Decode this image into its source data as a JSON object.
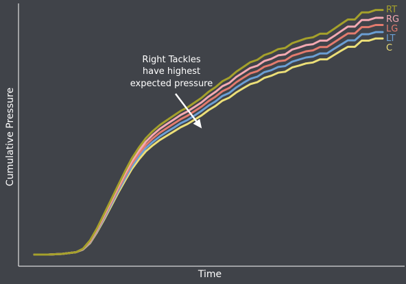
{
  "chart_data": {
    "type": "line",
    "title": "",
    "xlabel": "Time",
    "ylabel": "Cumulative Pressure",
    "xlim": [
      0,
      100
    ],
    "ylim": [
      0,
      100
    ],
    "grid": false,
    "legend_placement": "right, at line ends",
    "annotation": {
      "lines": [
        "Right Tackles",
        "have highest",
        "expected pressure"
      ],
      "arrow_target": {
        "x": 52,
        "y": 55
      }
    },
    "x": [
      0,
      4,
      8,
      12,
      14,
      16,
      18,
      20,
      22,
      24,
      26,
      28,
      30,
      32,
      34,
      36,
      38,
      40,
      42,
      44,
      46,
      48,
      50,
      52,
      54,
      56,
      58,
      60,
      62,
      64,
      66,
      68,
      70,
      72,
      74,
      76,
      78,
      80,
      82,
      84,
      86,
      88,
      90,
      92,
      94,
      96,
      98,
      100
    ],
    "series": [
      {
        "name": "RT",
        "color": "#a5a12b",
        "values": [
          0,
          0,
          0.3,
          1,
          2.5,
          6,
          11,
          17,
          23,
          29,
          35,
          40.5,
          45,
          49,
          52,
          54.5,
          56.5,
          58.5,
          60.5,
          62,
          64,
          66,
          68.5,
          70.5,
          73,
          74.5,
          77,
          79,
          81,
          82,
          84,
          85,
          86.5,
          87,
          89,
          90,
          91,
          91.5,
          93,
          93,
          95,
          97,
          99,
          99,
          102,
          102,
          103,
          103
        ]
      },
      {
        "name": "RG",
        "color": "#f4a9b2",
        "values": [
          0,
          0,
          0.3,
          1,
          2.4,
          5.7,
          10.6,
          16.4,
          22.3,
          28.2,
          34,
          39.3,
          43.7,
          47.5,
          50.4,
          52.9,
          54.9,
          56.8,
          58.8,
          60.3,
          62.2,
          64.1,
          66.5,
          68.5,
          70.9,
          72.3,
          74.8,
          76.7,
          78.6,
          79.5,
          81.5,
          82.4,
          83.9,
          84.3,
          86.3,
          87.2,
          88.2,
          88.6,
          90.1,
          90.1,
          92,
          94,
          96,
          96,
          98.8,
          98.8,
          99.7,
          99.7
        ]
      },
      {
        "name": "LG",
        "color": "#e37b6e",
        "values": [
          0,
          0,
          0.3,
          1,
          2.3,
          5.4,
          10.2,
          15.8,
          21.6,
          27.4,
          33,
          38.2,
          42.5,
          46.1,
          48.9,
          51.3,
          53.2,
          55.1,
          57,
          58.5,
          60.4,
          62.3,
          64.6,
          66.5,
          68.8,
          70.2,
          72.6,
          74.5,
          76.3,
          77.2,
          79.1,
          80,
          81.4,
          81.8,
          83.7,
          84.6,
          85.6,
          86,
          87.4,
          87.4,
          89.3,
          91.2,
          93.1,
          93.1,
          95.8,
          95.8,
          96.7,
          96.7
        ]
      },
      {
        "name": "LT",
        "color": "#6b9fd4",
        "values": [
          0,
          0,
          0.3,
          1,
          2.2,
          5.1,
          9.8,
          15.2,
          20.9,
          26.6,
          32,
          37.1,
          41.3,
          44.8,
          47.4,
          49.7,
          51.6,
          53.4,
          55.3,
          56.7,
          58.6,
          60.5,
          62.7,
          64.5,
          66.8,
          68.1,
          70.4,
          72.3,
          74,
          74.9,
          76.8,
          77.6,
          79,
          79.4,
          81.2,
          82.1,
          83,
          83.4,
          84.7,
          84.7,
          86.6,
          88.4,
          90.2,
          90.2,
          92.8,
          92.8,
          93.7,
          93.7
        ]
      },
      {
        "name": "C",
        "color": "#ecdf78",
        "values": [
          0,
          0,
          0.3,
          1,
          2.1,
          4.8,
          9.4,
          14.6,
          20.2,
          25.8,
          31,
          36,
          40,
          43.5,
          46,
          48.2,
          50,
          51.8,
          53.6,
          55,
          56.8,
          58.6,
          60.8,
          62.6,
          64.8,
          66.1,
          68.3,
          70.1,
          71.8,
          72.6,
          74.4,
          75.3,
          76.6,
          77,
          78.8,
          79.6,
          80.5,
          80.9,
          82.2,
          82.2,
          84,
          85.8,
          87.5,
          87.5,
          90.1,
          90.1,
          91,
          91
        ]
      }
    ]
  }
}
